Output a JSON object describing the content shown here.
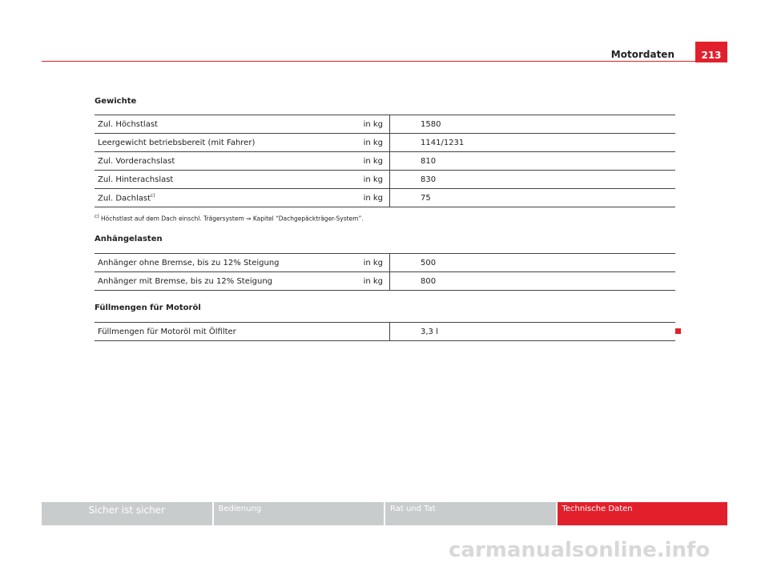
{
  "header": {
    "section": "Motordaten",
    "page": "213"
  },
  "sections": [
    {
      "title": "Gewichte",
      "rows": [
        {
          "label": "Zul. Höchstlast",
          "unit": "in kg",
          "value": "1580"
        },
        {
          "label": "Leergewicht betriebsbereit (mit Fahrer)",
          "unit": "in kg",
          "value": "1141/1231"
        },
        {
          "label": "Zul. Vorderachslast",
          "unit": "in kg",
          "value": "810"
        },
        {
          "label": "Zul. Hinterachslast",
          "unit": "in kg",
          "value": "830"
        },
        {
          "label": "Zul. Dachlast",
          "note": "c)",
          "unit": "in kg",
          "value": "75"
        }
      ]
    },
    {
      "title": "Anhängelasten",
      "rows": [
        {
          "label": "Anhänger ohne Bremse, bis zu 12% Steigung",
          "unit": "in kg",
          "value": "500"
        },
        {
          "label": "Anhänger mit Bremse, bis zu 12% Steigung",
          "unit": "in kg",
          "value": "800"
        }
      ]
    },
    {
      "title": "Füllmengen für Motoröl",
      "rows": [
        {
          "label": "Füllmengen für Motoröl mit Ölfilter",
          "value": "3,3 l"
        }
      ]
    }
  ],
  "footnote": {
    "marker": "c)",
    "text": "Höchstlast auf dem Dach einschl. Trägersystem ⇒ Kapitel “Dachgepäckträger-System”."
  },
  "nav": [
    "Sicher ist sicher",
    "Bedienung",
    "Rat und Tat",
    "Technische Daten"
  ],
  "watermark": "carmanualsonline.info"
}
